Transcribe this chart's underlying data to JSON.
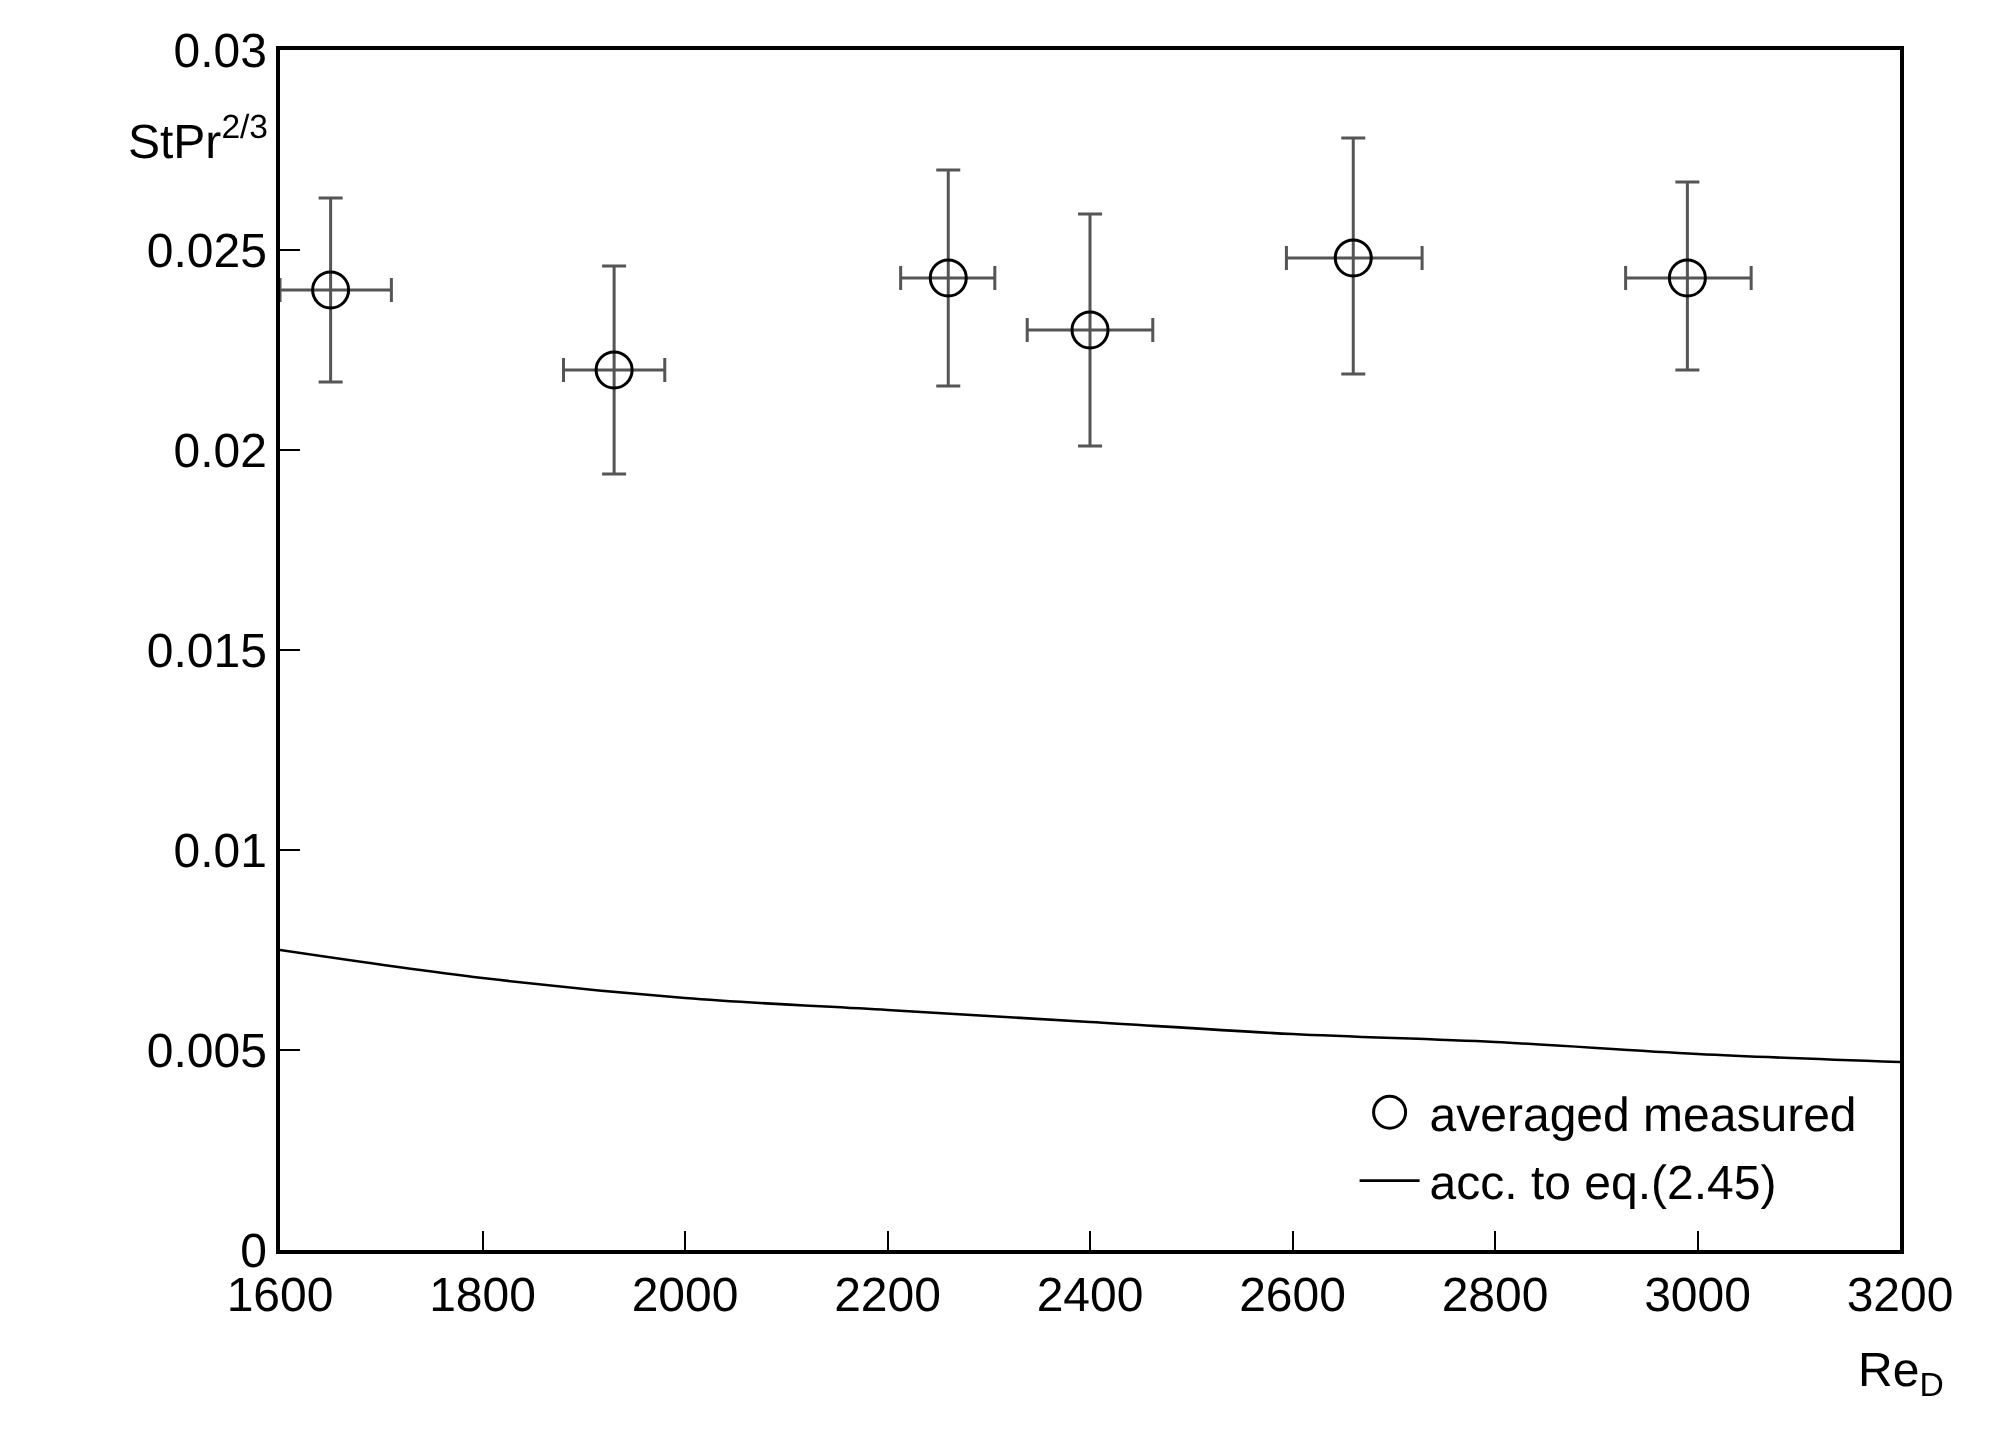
{
  "chart_data": {
    "type": "scatter",
    "xlabel": "Re$_{D}$",
    "ylabel": "StPr$^{2/3}$",
    "xlim": [
      1600,
      3200
    ],
    "xticks": [
      1600,
      1800,
      2000,
      2200,
      2400,
      2600,
      2800,
      3000,
      3200
    ],
    "ylim": [
      0,
      0.03
    ],
    "yticks": [
      0,
      0.005,
      0.01,
      0.015,
      0.02,
      0.025,
      0.03
    ],
    "grid": false,
    "legend": "bottom right",
    "series": [
      {
        "name": "averaged measured",
        "marker": "circle",
        "color": "#000000",
        "x": [
          1650,
          1930,
          2260,
          2400,
          2660,
          2990
        ],
        "values": [
          0.024,
          0.022,
          0.0243,
          0.023,
          0.0248,
          0.0243
        ],
        "errors": [
          [
            0.0217,
            0.0263
          ],
          [
            0.0194,
            0.0246
          ],
          [
            0.0216,
            0.027
          ],
          [
            0.0201,
            0.0259
          ],
          [
            0.0219,
            0.0278
          ],
          [
            0.022,
            0.0267
          ]
        ],
        "xerrors": [
          [
            1600,
            1710
          ],
          [
            1880,
            1980
          ],
          [
            2213,
            2306
          ],
          [
            2338,
            2462
          ],
          [
            2594,
            2728
          ],
          [
            2929,
            3053
          ]
        ]
      },
      {
        "name": "acc. to eq.(2.45)",
        "type": "line",
        "color": "#000000",
        "line_style": "solid",
        "x": [
          1600,
          1800,
          2000,
          2200,
          2400,
          2600,
          2800,
          3000,
          3200
        ],
        "values": [
          0.0075,
          0.0068,
          0.0063,
          0.006,
          0.0057,
          0.0054,
          0.0052,
          0.0049,
          0.0047
        ]
      }
    ]
  }
}
